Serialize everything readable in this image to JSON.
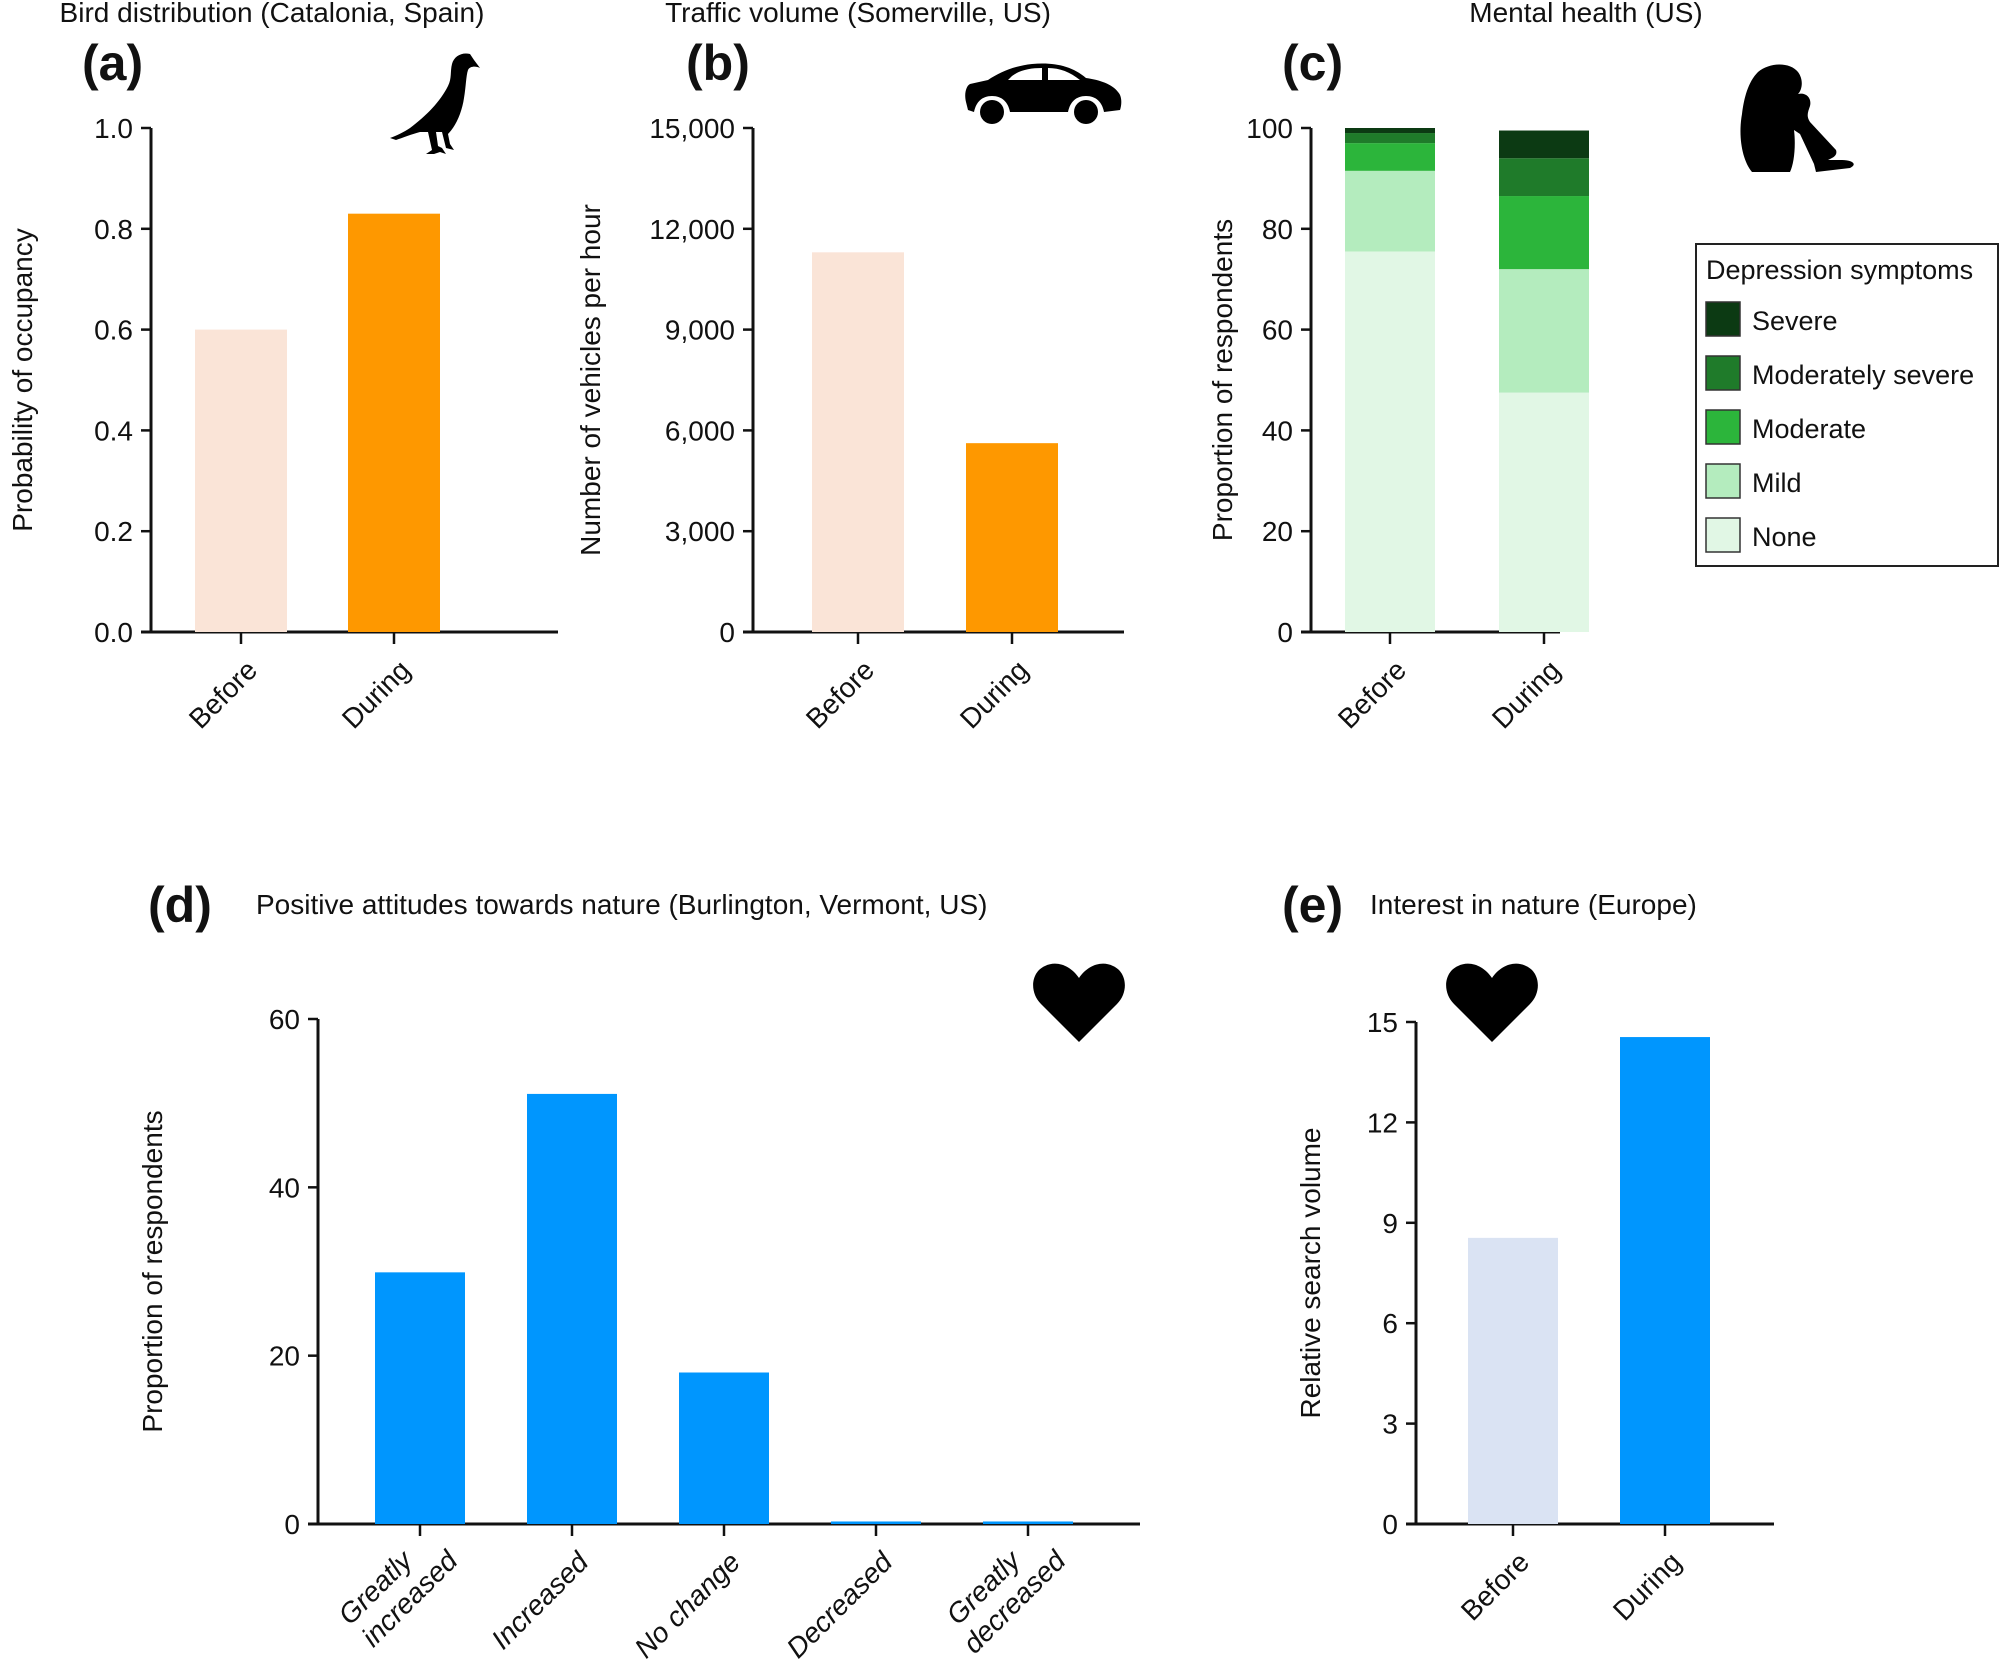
{
  "colors": {
    "orange_before": "#fae4d7",
    "orange_during": "#fe9800",
    "blue_before": "#dae3f3",
    "blue_during": "#0096fe",
    "severe": "#0c3a13",
    "moderately_severe": "#1f7b2a",
    "moderate": "#2cb53b",
    "mild": "#b4ecbe",
    "none": "#e1f7e5"
  },
  "chart_data": [
    {
      "id": "a",
      "letter": "(a)",
      "type": "bar",
      "title": "Bird distribution (Catalonia, Spain)",
      "icon": "bird-icon",
      "xlabel": "",
      "ylabel": "Probability of occupancy",
      "categories": [
        "Before",
        "During"
      ],
      "values": [
        0.6,
        0.83
      ],
      "ylim": [
        0,
        1.0
      ],
      "yticks": [
        0.0,
        0.2,
        0.4,
        0.6,
        0.8,
        1.0
      ],
      "ytick_labels": [
        "0.0",
        "0.2",
        "0.4",
        "0.6",
        "0.8",
        "1.0"
      ],
      "bar_colors": [
        "#fae4d7",
        "#fe9800"
      ],
      "grid": false
    },
    {
      "id": "b",
      "letter": "(b)",
      "type": "bar",
      "title": "Traffic volume (Somerville, US)",
      "icon": "car-icon",
      "xlabel": "",
      "ylabel": "Number of vehicles per hour",
      "categories": [
        "Before",
        "During"
      ],
      "values": [
        11300,
        5620
      ],
      "ylim": [
        0,
        15000
      ],
      "yticks": [
        0,
        3000,
        6000,
        9000,
        12000,
        15000
      ],
      "ytick_labels": [
        "0",
        "3,000",
        "6,000",
        "9,000",
        "12,000",
        "15,000"
      ],
      "bar_colors": [
        "#fae4d7",
        "#fe9800"
      ],
      "grid": false
    },
    {
      "id": "c",
      "letter": "(c)",
      "type": "bar",
      "stacked": true,
      "title": "Mental health (US)",
      "icon": "sad-person-icon",
      "xlabel": "",
      "ylabel": "Proportion of respondents",
      "categories": [
        "Before",
        "During"
      ],
      "series": [
        {
          "name": "None",
          "values": [
            75.5,
            47.5
          ],
          "color": "#e1f7e5"
        },
        {
          "name": "Mild",
          "values": [
            16.0,
            24.5
          ],
          "color": "#b4ecbe"
        },
        {
          "name": "Moderate",
          "values": [
            5.5,
            14.5
          ],
          "color": "#2cb53b"
        },
        {
          "name": "Moderately severe",
          "values": [
            2.0,
            7.5
          ],
          "color": "#1f7b2a"
        },
        {
          "name": "Severe",
          "values": [
            1.0,
            5.5
          ],
          "color": "#0c3a13"
        }
      ],
      "legend_title": "Depression symptoms",
      "legend_order": [
        "Severe",
        "Moderately severe",
        "Moderate",
        "Mild",
        "None"
      ],
      "legend_position": "right",
      "ylim": [
        0,
        100
      ],
      "yticks": [
        0,
        20,
        40,
        60,
        80,
        100
      ],
      "ytick_labels": [
        "0",
        "20",
        "40",
        "60",
        "80",
        "100"
      ],
      "grid": false
    },
    {
      "id": "d",
      "letter": "(d)",
      "type": "bar",
      "title": "Positive attitudes towards nature (Burlington, Vermont, US)",
      "icon": "heart-icon",
      "xlabel": "",
      "ylabel": "Proportion of respondents",
      "categories": [
        "Greatly increased",
        "Increased",
        "No change",
        "Decreased",
        "Greatly decreased"
      ],
      "category_lines": [
        [
          "Greatly",
          "increased"
        ],
        [
          "Increased"
        ],
        [
          "No change"
        ],
        [
          "Decreased"
        ],
        [
          "Greatly",
          "decreased"
        ]
      ],
      "values": [
        29.9,
        51.1,
        18.0,
        0.3,
        0.3
      ],
      "ylim": [
        0,
        60
      ],
      "yticks": [
        0,
        20,
        40,
        60
      ],
      "ytick_labels": [
        "0",
        "20",
        "40",
        "60"
      ],
      "bar_colors": [
        "#0096fe",
        "#0096fe",
        "#0096fe",
        "#0096fe",
        "#0096fe"
      ],
      "grid": false
    },
    {
      "id": "e",
      "letter": "(e)",
      "type": "bar",
      "title": "Interest in nature (Europe)",
      "icon": "heart-icon",
      "xlabel": "",
      "ylabel": "Relative search volume",
      "categories": [
        "Before",
        "During"
      ],
      "values": [
        8.55,
        14.55
      ],
      "ylim": [
        0,
        15
      ],
      "yticks": [
        0,
        3,
        6,
        9,
        12,
        15
      ],
      "ytick_labels": [
        "0",
        "3",
        "6",
        "9",
        "12",
        "15"
      ],
      "bar_colors": [
        "#dae3f3",
        "#0096fe"
      ],
      "grid": false
    }
  ]
}
